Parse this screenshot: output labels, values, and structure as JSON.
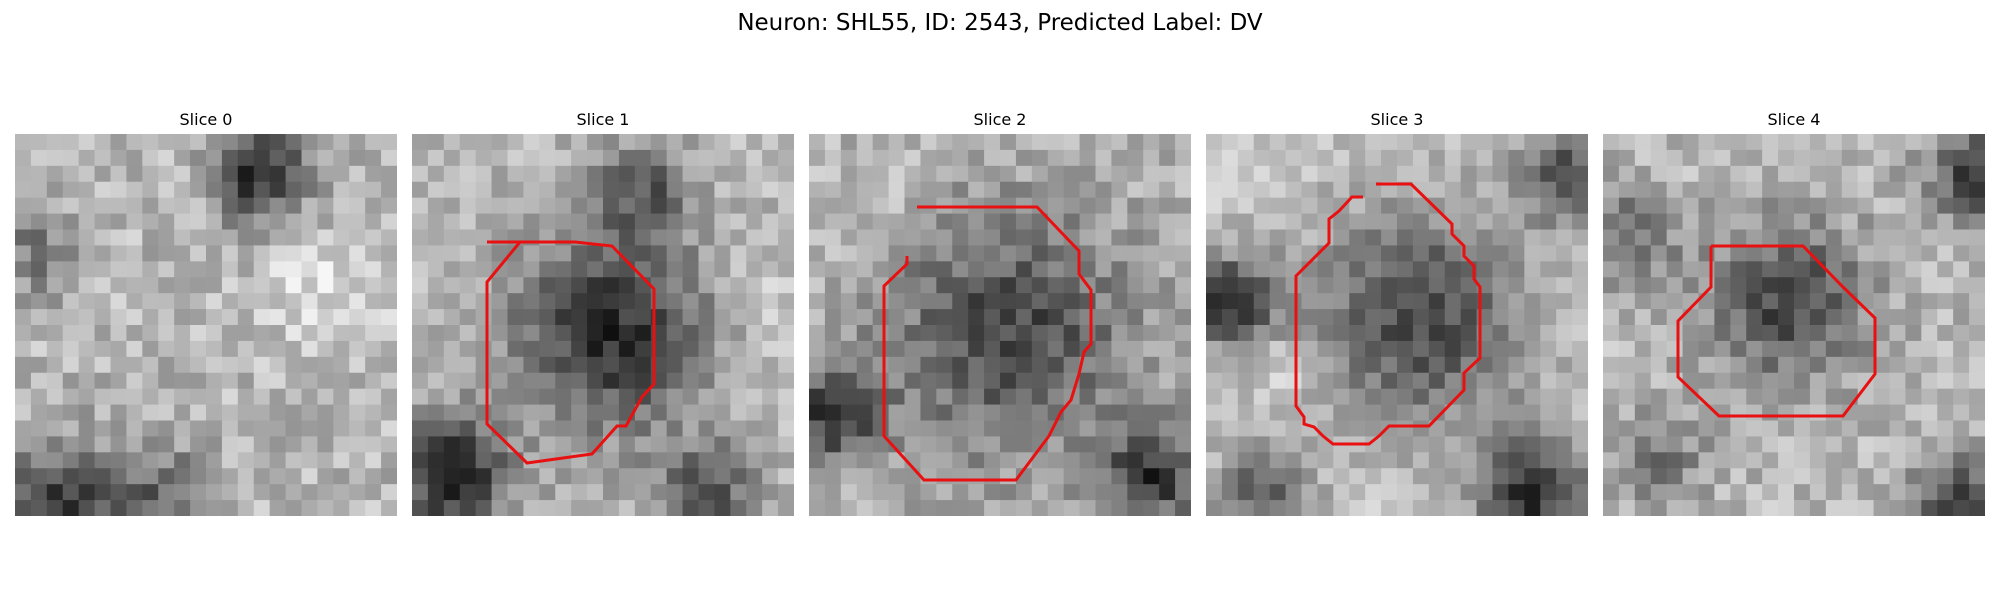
{
  "figure": {
    "title": "Neuron: SHL55, ID: 2543, Predicted Label: DV",
    "contour_color": "#e81010",
    "colormap": "gray"
  },
  "panels": [
    {
      "title": "Slice 0",
      "has_contour": false,
      "image_description": "mottled grayscale texture; dark patch at top-center, lighter band through middle, darker bottom edge"
    },
    {
      "title": "Slice 1",
      "has_contour": true,
      "image_description": "dark round cell body outlined by red polygon; dark blobs at bottom-left"
    },
    {
      "title": "Slice 2",
      "has_contour": true,
      "image_description": "large medium-dark cell body outlined by red polygon; speckled texture"
    },
    {
      "title": "Slice 3",
      "has_contour": true,
      "image_description": "dark round cell body outlined by red octagon; bright halo around it, dark corners"
    },
    {
      "title": "Slice 4",
      "has_contour": true,
      "image_description": "dark cell body outlined by red octagon; darker patches top-right and bottom-right"
    }
  ]
}
